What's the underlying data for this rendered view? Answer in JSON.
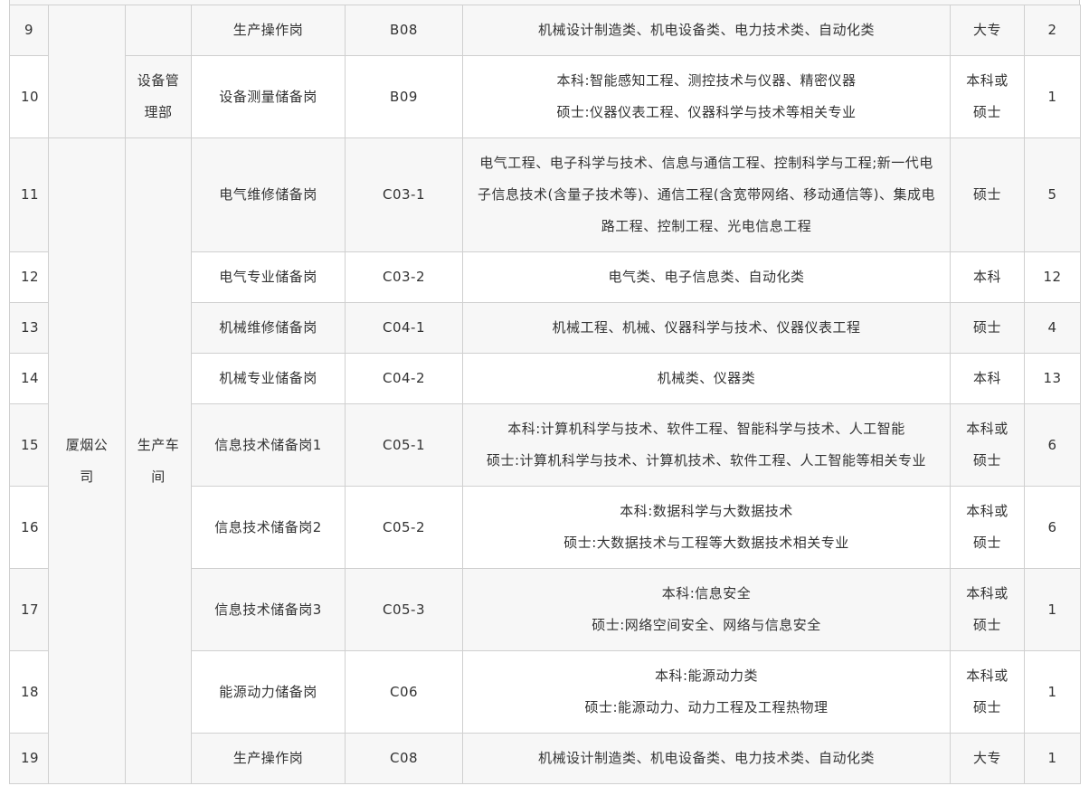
{
  "rows": [
    {
      "no": "9",
      "position": "生产操作岗",
      "code": "B08",
      "majors": [
        "机械设计制造类、机电设备类、电力技术类、自动化类"
      ],
      "education": "大专",
      "count": "2"
    },
    {
      "no": "10",
      "position": "设备测量储备岗",
      "code": "B09",
      "majors": [
        "本科:智能感知工程、测控技术与仪器、精密仪器",
        "硕士:仪器仪表工程、仪器科学与技术等相关专业"
      ],
      "education": "本科或硕士",
      "count": "1"
    },
    {
      "no": "11",
      "position": "电气维修储备岗",
      "code": "C03-1",
      "majors": [
        "电气工程、电子科学与技术、信息与通信工程、控制科学与工程;新一代电",
        "子信息技术(含量子技术等)、通信工程(含宽带网络、移动通信等)、集成电",
        "路工程、控制工程、光电信息工程"
      ],
      "education": "硕士",
      "count": "5"
    },
    {
      "no": "12",
      "position": "电气专业储备岗",
      "code": "C03-2",
      "majors": [
        "电气类、电子信息类、自动化类"
      ],
      "education": "本科",
      "count": "12"
    },
    {
      "no": "13",
      "position": "机械维修储备岗",
      "code": "C04-1",
      "majors": [
        "机械工程、机械、仪器科学与技术、仪器仪表工程"
      ],
      "education": "硕士",
      "count": "4"
    },
    {
      "no": "14",
      "position": "机械专业储备岗",
      "code": "C04-2",
      "majors": [
        "机械类、仪器类"
      ],
      "education": "本科",
      "count": "13"
    },
    {
      "no": "15",
      "position": "信息技术储备岗1",
      "code": "C05-1",
      "majors": [
        "本科:计算机科学与技术、软件工程、智能科学与技术、人工智能",
        "硕士:计算机科学与技术、计算机技术、软件工程、人工智能等相关专业"
      ],
      "education": "本科或硕士",
      "count": "6"
    },
    {
      "no": "16",
      "position": "信息技术储备岗2",
      "code": "C05-2",
      "majors": [
        "本科:数据科学与大数据技术",
        "硕士:大数据技术与工程等大数据技术相关专业"
      ],
      "education": "本科或硕士",
      "count": "6"
    },
    {
      "no": "17",
      "position": "信息技术储备岗3",
      "code": "C05-3",
      "majors": [
        "本科:信息安全",
        "硕士:网络空间安全、网络与信息安全"
      ],
      "education": "本科或硕士",
      "count": "1"
    },
    {
      "no": "18",
      "position": "能源动力储备岗",
      "code": "C06",
      "majors": [
        "本科:能源动力类",
        "硕士:能源动力、动力工程及工程热物理"
      ],
      "education": "本科或硕士",
      "count": "1"
    },
    {
      "no": "19",
      "position": "生产操作岗",
      "code": "C08",
      "majors": [
        "机械设计制造类、机电设备类、电力技术类、自动化类"
      ],
      "education": "大专",
      "count": "1"
    }
  ],
  "merged": {
    "department_equipment": "设备管理部",
    "company_xiamen": "厦烟公司",
    "department_production": "生产车间"
  },
  "colors": {
    "stripe": "#f7f7f7",
    "border": "#d0d0d0",
    "text": "#333333"
  }
}
